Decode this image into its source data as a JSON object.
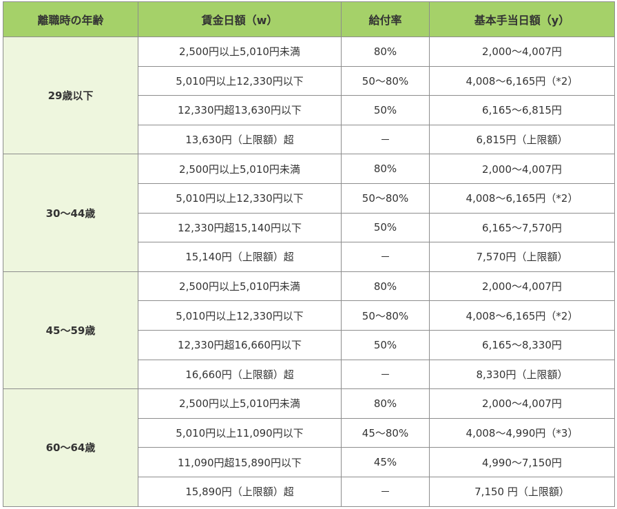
{
  "table": {
    "headers": [
      "離職時の年齢",
      "賃金日額（w）",
      "給付率",
      "基本手当日額（y）"
    ],
    "groups": [
      {
        "age": "29歳以下",
        "rows": [
          [
            "2,500円以上5,010円未満",
            "80%",
            "2,000～4,007円"
          ],
          [
            "5,010円以上12,330円以下",
            "50～80%",
            "4,008～6,165円（*2）"
          ],
          [
            "12,330円超13,630円以下",
            "50%",
            "6,165～6,815円"
          ],
          [
            "13,630円（上限額）超",
            "－",
            "6,815円（上限額）"
          ]
        ]
      },
      {
        "age": "30～44歳",
        "rows": [
          [
            "2,500円以上5,010円未満",
            "80%",
            "2,000～4,007円"
          ],
          [
            "5,010円以上12,330円以下",
            "50～80%",
            "4,008～6,165円（*2）"
          ],
          [
            "12,330円超15,140円以下",
            "50%",
            "6,165～7,570円"
          ],
          [
            "15,140円（上限額）超",
            "－",
            "7,570円（上限額）"
          ]
        ]
      },
      {
        "age": "45～59歳",
        "rows": [
          [
            "2,500円以上5,010円未満",
            "80%",
            "2,000～4,007円"
          ],
          [
            "5,010円以上12,330円以下",
            "50～80%",
            "4,008～6,165円（*2）"
          ],
          [
            "12,330円超16,660円以下",
            "50%",
            "6,165～8,330円"
          ],
          [
            "16,660円（上限額）超",
            "－",
            "8,330円（上限額）"
          ]
        ]
      },
      {
        "age": "60～64歳",
        "rows": [
          [
            "2,500円以上5,010円未満",
            "80%",
            "2,000～4,007円"
          ],
          [
            "5,010円以上11,090円以下",
            "45～80%",
            "4,008～4,990円（*3）"
          ],
          [
            "11,090円超15,890円以下",
            "45%",
            "4,990～7,150円"
          ],
          [
            "15,890円（上限額）超",
            "－",
            "7,150 円（上限額）"
          ]
        ]
      }
    ]
  }
}
